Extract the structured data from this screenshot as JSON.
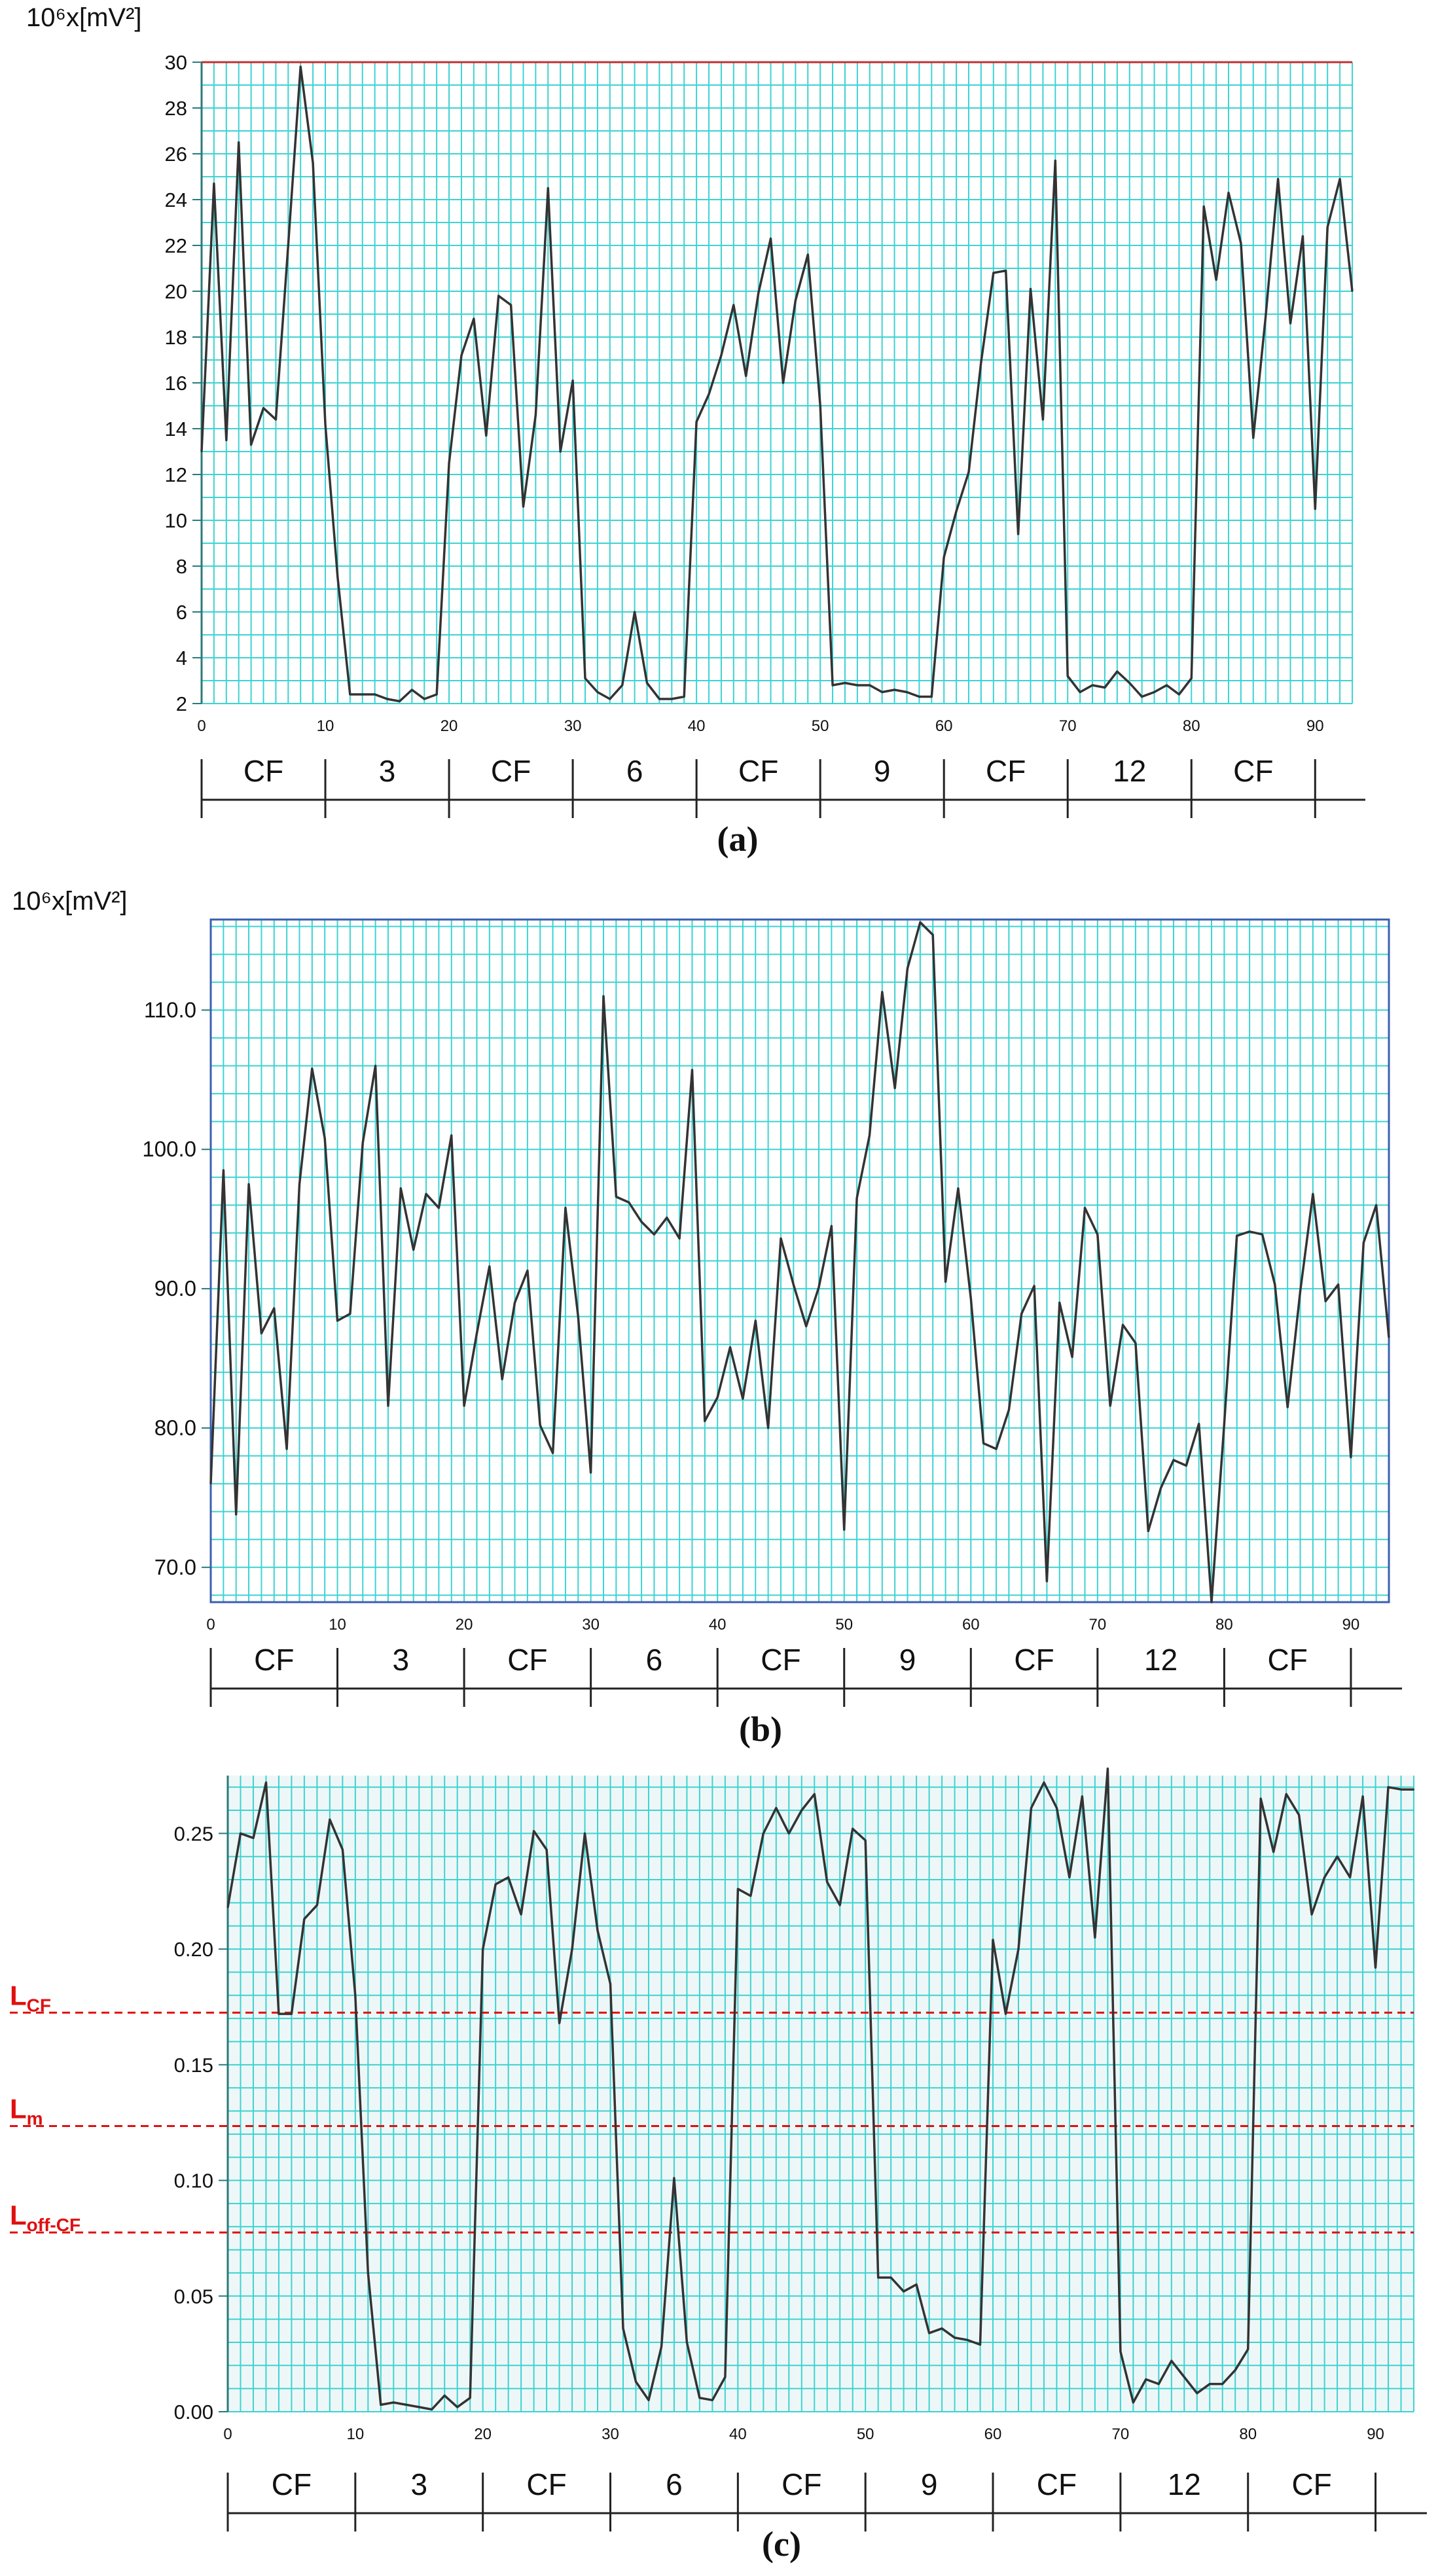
{
  "colors": {
    "grid": "#3fd2d2",
    "line": "#333333",
    "threshold": "#e01010",
    "plot_bg_c": "#eef7f7",
    "topline_a": "#c03030",
    "frame_b": "#3a5fb0"
  },
  "chart_data": [
    {
      "type": "line",
      "panel_label": "(a)",
      "ylabel": "10⁶x[mV²]",
      "ylim": [
        2,
        30
      ],
      "y_ticks": [
        2,
        4,
        6,
        8,
        10,
        12,
        14,
        16,
        18,
        20,
        22,
        24,
        26,
        28,
        30
      ],
      "xlim": [
        0,
        93
      ],
      "x_ticks": [
        0,
        10,
        20,
        30,
        40,
        50,
        60,
        70,
        80,
        90
      ],
      "segments": [
        "CF",
        "3",
        "CF",
        "6",
        "CF",
        "9",
        "CF",
        "12",
        "CF"
      ],
      "x": [
        0,
        1,
        2,
        3,
        4,
        5,
        6,
        7,
        8,
        9,
        10,
        11,
        12,
        13,
        14,
        15,
        16,
        17,
        18,
        19,
        20,
        21,
        22,
        23,
        24,
        25,
        26,
        27,
        28,
        29,
        30,
        31,
        32,
        33,
        34,
        35,
        36,
        37,
        38,
        39,
        40,
        41,
        42,
        43,
        44,
        45,
        46,
        47,
        48,
        49,
        50,
        51,
        52,
        53,
        54,
        55,
        56,
        57,
        58,
        59,
        60,
        61,
        62,
        63,
        64,
        65,
        66,
        67,
        68,
        69,
        70,
        71,
        72,
        73,
        74,
        75,
        76,
        77,
        78,
        79,
        80,
        81,
        82,
        83,
        84,
        85,
        86,
        87,
        88,
        89,
        90,
        91,
        92,
        93
      ],
      "values": [
        13,
        24.7,
        13.5,
        26.5,
        13.3,
        14.9,
        14.4,
        22,
        29.8,
        25.6,
        14.2,
        7.5,
        2.4,
        2.4,
        2.4,
        2.2,
        2.1,
        2.6,
        2.2,
        2.4,
        12.5,
        17.2,
        18.8,
        13.7,
        19.8,
        19.4,
        10.6,
        14.6,
        24.5,
        13,
        16.1,
        3.1,
        2.5,
        2.2,
        2.8,
        6,
        2.9,
        2.2,
        2.2,
        2.3,
        14.3,
        15.5,
        17.2,
        19.4,
        16.3,
        19.9,
        22.3,
        16,
        19.6,
        21.6,
        15,
        2.8,
        2.9,
        2.8,
        2.8,
        2.5,
        2.6,
        2.5,
        2.3,
        2.3,
        8.4,
        10.4,
        12.1,
        16.9,
        20.8,
        20.9,
        9.4,
        20.1,
        14.4,
        25.7,
        3.2,
        2.5,
        2.8,
        2.7,
        3.4,
        2.9,
        2.3,
        2.5,
        2.8,
        2.4,
        3.1,
        23.7,
        20.5,
        24.3,
        22.1,
        13.6,
        18.9,
        24.9,
        18.6,
        22.4,
        10.5,
        22.8,
        24.9,
        20
      ]
    },
    {
      "type": "line",
      "panel_label": "(b)",
      "ylabel": "10⁶x[mV²]",
      "ylim": [
        67.5,
        116.5
      ],
      "y_ticks": [
        70,
        80,
        90,
        100,
        110
      ],
      "y_tick_labels": [
        "70.0",
        "80.0",
        "90.0",
        "100.0",
        "110.0"
      ],
      "xlim": [
        0,
        93
      ],
      "x_ticks": [
        0,
        10,
        20,
        30,
        40,
        50,
        60,
        70,
        80,
        90
      ],
      "segments": [
        "CF",
        "3",
        "CF",
        "6",
        "CF",
        "9",
        "CF",
        "12",
        "CF"
      ],
      "x": [
        0,
        1,
        2,
        3,
        4,
        5,
        6,
        7,
        8,
        9,
        10,
        11,
        12,
        13,
        14,
        15,
        16,
        17,
        18,
        19,
        20,
        21,
        22,
        23,
        24,
        25,
        26,
        27,
        28,
        29,
        30,
        31,
        32,
        33,
        34,
        35,
        36,
        37,
        38,
        39,
        40,
        41,
        42,
        43,
        44,
        45,
        46,
        47,
        48,
        49,
        50,
        51,
        52,
        53,
        54,
        55,
        56,
        57,
        58,
        59,
        60,
        61,
        62,
        63,
        64,
        65,
        66,
        67,
        68,
        69,
        70,
        71,
        72,
        73,
        74,
        75,
        76,
        77,
        78,
        79,
        80,
        81,
        82,
        83,
        84,
        85,
        86,
        87,
        88,
        89,
        90,
        91,
        92,
        93
      ],
      "values": [
        76,
        98.5,
        73.8,
        97.5,
        86.8,
        88.6,
        78.5,
        97.5,
        105.8,
        100.8,
        87.7,
        88.2,
        100.5,
        106,
        81.6,
        97.2,
        92.8,
        96.8,
        95.8,
        101,
        81.6,
        86.8,
        91.6,
        83.5,
        89,
        91.3,
        80.2,
        78.2,
        95.8,
        88,
        76.8,
        111,
        96.6,
        96.2,
        94.8,
        93.9,
        95.1,
        93.6,
        105.7,
        80.5,
        82.2,
        85.8,
        82.1,
        87.7,
        80,
        93.6,
        90.3,
        87.3,
        90.1,
        94.5,
        72.7,
        96.5,
        101,
        111.3,
        104.4,
        113,
        116.3,
        115.4,
        90.5,
        97.2,
        89.3,
        78.9,
        78.5,
        81.3,
        88.2,
        90.2,
        69,
        89,
        85.1,
        95.8,
        93.9,
        81.6,
        87.4,
        86.1,
        72.6,
        75.7,
        77.7,
        77.3,
        80.3,
        67.5,
        80.3,
        93.8,
        94.1,
        93.9,
        90.3,
        81.5,
        89.8,
        96.8,
        89.1,
        90.3,
        77.9,
        93.3,
        96,
        86.5
      ]
    },
    {
      "type": "line",
      "panel_label": "(c)",
      "ylabel": "",
      "ylim": [
        0,
        0.275
      ],
      "y_ticks": [
        0,
        0.05,
        0.1,
        0.15,
        0.2,
        0.25
      ],
      "y_tick_labels": [
        "0.00",
        "0.05",
        "0.10",
        "0.15",
        "0.20",
        "0.25"
      ],
      "xlim": [
        0,
        93
      ],
      "x_ticks": [
        0,
        10,
        20,
        30,
        40,
        50,
        60,
        70,
        80,
        90
      ],
      "segments": [
        "CF",
        "3",
        "CF",
        "6",
        "CF",
        "9",
        "CF",
        "12",
        "CF"
      ],
      "thresholds": [
        {
          "label": "L",
          "sub": "CF",
          "y": 0.1725
        },
        {
          "label": "L",
          "sub": "m",
          "y": 0.1235
        },
        {
          "label": "L",
          "sub": "off-CF",
          "y": 0.0775
        }
      ],
      "x": [
        0,
        1,
        2,
        3,
        4,
        5,
        6,
        7,
        8,
        9,
        10,
        11,
        12,
        13,
        14,
        15,
        16,
        17,
        18,
        19,
        20,
        21,
        22,
        23,
        24,
        25,
        26,
        27,
        28,
        29,
        30,
        31,
        32,
        33,
        34,
        35,
        36,
        37,
        38,
        39,
        40,
        41,
        42,
        43,
        44,
        45,
        46,
        47,
        48,
        49,
        50,
        51,
        52,
        53,
        54,
        55,
        56,
        57,
        58,
        59,
        60,
        61,
        62,
        63,
        64,
        65,
        66,
        67,
        68,
        69,
        70,
        71,
        72,
        73,
        74,
        75,
        76,
        77,
        78,
        79,
        80,
        81,
        82,
        83,
        84,
        85,
        86,
        87,
        88,
        89,
        90,
        91,
        92,
        93
      ],
      "values": [
        0.218,
        0.25,
        0.248,
        0.272,
        0.172,
        0.172,
        0.213,
        0.219,
        0.256,
        0.243,
        0.18,
        0.06,
        0.003,
        0.004,
        0.003,
        0.002,
        0.001,
        0.007,
        0.002,
        0.006,
        0.2,
        0.228,
        0.231,
        0.215,
        0.251,
        0.243,
        0.168,
        0.2,
        0.25,
        0.208,
        0.185,
        0.036,
        0.013,
        0.005,
        0.028,
        0.101,
        0.03,
        0.006,
        0.005,
        0.015,
        0.226,
        0.223,
        0.25,
        0.261,
        0.25,
        0.26,
        0.267,
        0.229,
        0.219,
        0.252,
        0.247,
        0.058,
        0.058,
        0.052,
        0.055,
        0.034,
        0.036,
        0.032,
        0.031,
        0.029,
        0.204,
        0.172,
        0.2,
        0.261,
        0.272,
        0.261,
        0.231,
        0.266,
        0.205,
        0.278,
        0.026,
        0.004,
        0.014,
        0.012,
        0.022,
        0.015,
        0.008,
        0.012,
        0.012,
        0.018,
        0.027,
        0.265,
        0.242,
        0.267,
        0.258,
        0.215,
        0.231,
        0.24,
        0.231,
        0.266,
        0.192,
        0.27,
        0.269,
        0.269
      ]
    }
  ]
}
